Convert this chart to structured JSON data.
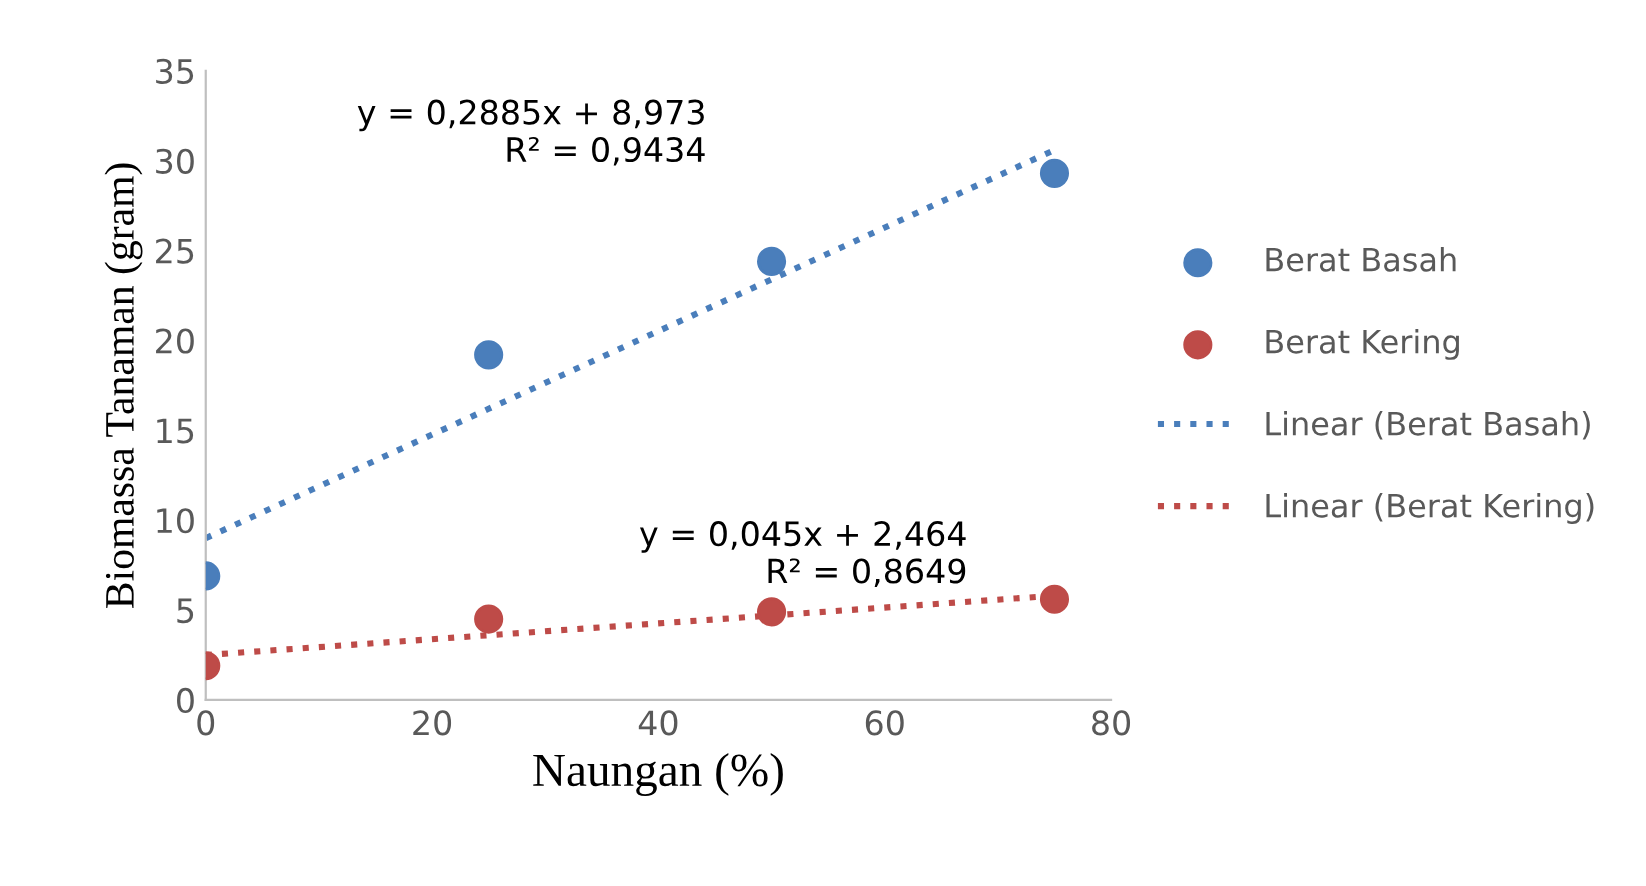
{
  "chart_data": {
    "type": "scatter",
    "xlabel": "Naungan (%)",
    "ylabel": "Biomassa Tanaman (gram)",
    "x": [
      0,
      25,
      50,
      75
    ],
    "series": [
      {
        "name": "Berat Basah",
        "color": "#4a7ebb",
        "values": [
          6.9,
          19.2,
          24.4,
          29.3
        ]
      },
      {
        "name": "Berat Kering",
        "color": "#be4b48",
        "values": [
          1.9,
          4.5,
          4.9,
          5.6
        ]
      },
      {
        "name": "Linear (Berat Basah)",
        "type": "line",
        "color": "#4a7ebb",
        "line_style": "dotted",
        "marker": "none",
        "values": [
          9.0,
          16.2,
          23.4,
          30.6
        ]
      },
      {
        "name": "Linear (Berat Kering)",
        "type": "line",
        "color": "#be4b48",
        "line_style": "dotted",
        "marker": "none",
        "values": [
          2.5,
          3.6,
          4.7,
          5.8
        ]
      }
    ],
    "marker": "circle",
    "xlim": [
      0,
      80
    ],
    "xticks": [
      0,
      20,
      40,
      60,
      80
    ],
    "ylim": [
      0,
      35
    ],
    "yticks": [
      0,
      5,
      10,
      15,
      20,
      25,
      30,
      35
    ],
    "grid": false,
    "legend": "right",
    "annotations": [
      "y = 0,2885x + 8,973\nR² = 0,9434",
      "y = 0,045x + 2,464\nR² = 0,8649"
    ]
  }
}
